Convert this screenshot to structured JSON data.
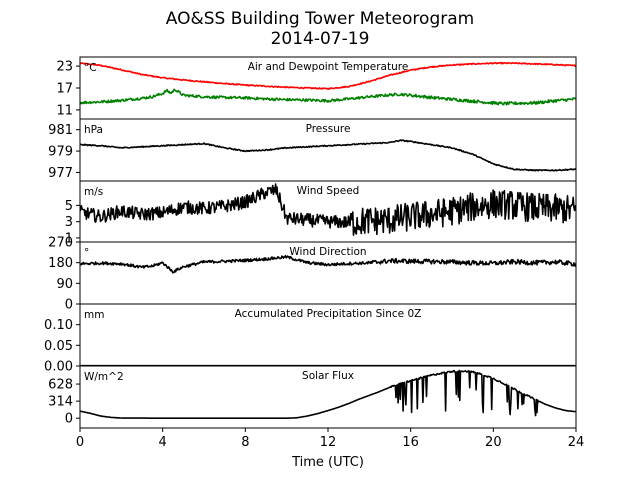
{
  "chart_data": {
    "type": "line",
    "title": "AO&SS Building Tower Meteorogram",
    "subtitle": "2014-07-19",
    "xlabel": "Time (UTC)",
    "xlim": [
      0,
      24
    ],
    "xticks": [
      0,
      4,
      8,
      12,
      16,
      20,
      24
    ],
    "panels": [
      {
        "id": "temp",
        "title": "Air and Dewpoint Temperature",
        "unit": "°C",
        "ylim": [
          8.5,
          25.5
        ],
        "yticks": [
          11,
          17,
          23
        ],
        "series": [
          {
            "color": "#ff0000",
            "x": [
              0,
              1,
              2,
              3,
              4,
              5,
              6,
              7,
              8,
              9,
              10,
              11,
              12,
              13,
              14,
              15,
              16,
              17,
              18,
              19,
              20,
              21,
              22,
              23,
              24
            ],
            "values": [
              23.8,
              23.2,
              22.0,
              20.7,
              19.8,
              19.2,
              18.7,
              18.2,
              17.8,
              17.5,
              17.2,
              17.0,
              16.8,
              17.4,
              18.8,
              20.5,
              21.9,
              22.8,
              23.3,
              23.6,
              23.8,
              23.8,
              23.6,
              23.4,
              23.1
            ]
          },
          {
            "color": "#008000",
            "x": [
              0,
              1,
              2,
              3,
              3.5,
              4,
              4.2,
              4.4,
              4.6,
              5,
              6,
              7,
              8,
              9,
              10,
              11,
              12,
              13,
              14,
              15,
              15.5,
              16,
              17,
              18,
              19,
              20,
              20.5,
              21,
              22,
              23,
              24
            ],
            "values": [
              13.0,
              13.2,
              13.6,
              14.2,
              14.6,
              15.5,
              16.3,
              15.6,
              16.6,
              15.0,
              14.6,
              14.4,
              14.3,
              14.0,
              13.8,
              13.7,
              13.5,
              14.0,
              14.6,
              15.1,
              15.3,
              15.0,
              14.4,
              13.9,
              13.4,
              12.9,
              12.7,
              12.8,
              12.9,
              13.5,
              14.0
            ]
          }
        ]
      },
      {
        "id": "pressure",
        "title": "Pressure",
        "unit": "hPa",
        "ylim": [
          976.2,
          982.0
        ],
        "yticks": [
          977,
          979,
          981
        ],
        "series": [
          {
            "color": "#000000",
            "x": [
              0,
              1,
              2,
              3,
              4,
              5,
              6,
              7,
              8,
              9,
              10,
              11,
              12,
              13,
              14,
              15,
              15.5,
              16,
              17,
              18,
              19,
              20,
              21,
              22,
              23,
              24
            ],
            "values": [
              979.6,
              979.5,
              979.3,
              979.4,
              979.5,
              979.6,
              979.7,
              979.3,
              979.0,
              979.1,
              979.3,
              979.4,
              979.5,
              979.6,
              979.7,
              979.8,
              980.0,
              979.9,
              979.6,
              979.3,
              978.7,
              977.8,
              977.3,
              977.2,
              977.2,
              977.3
            ]
          }
        ]
      },
      {
        "id": "wind_speed",
        "title": "Wind Speed",
        "unit": "m/s",
        "ylim": [
          0.5,
          8.0
        ],
        "yticks": [
          1,
          3,
          5
        ],
        "series": [
          {
            "color": "#000000",
            "x": [
              0,
              1,
              2,
              3,
              4,
              5,
              6,
              7,
              8,
              9,
              9.5,
              10,
              11,
              12,
              13,
              14,
              15,
              16,
              17,
              18,
              19,
              20,
              21,
              22,
              23,
              24
            ],
            "values": [
              4.2,
              3.6,
              4.3,
              3.9,
              4.1,
              4.8,
              4.6,
              4.9,
              5.4,
              6.6,
              6.9,
              3.4,
              3.2,
              3.0,
              2.9,
              3.1,
              3.2,
              3.6,
              3.9,
              4.3,
              4.8,
              5.2,
              5.0,
              4.7,
              4.6,
              4.4
            ]
          }
        ]
      },
      {
        "id": "wind_dir",
        "title": "Wind Direction",
        "unit": "°",
        "ylim": [
          0,
          270
        ],
        "yticks": [
          0,
          90,
          180,
          270
        ],
        "series": [
          {
            "color": "#000000",
            "x": [
              0,
              1,
              2,
              3,
              3.5,
              4,
              4.5,
              5,
              6,
              7,
              8,
              9,
              10,
              11,
              12,
              13,
              14,
              15,
              16,
              17,
              18,
              19,
              20,
              21,
              22,
              23,
              24
            ],
            "values": [
              175,
              178,
              175,
              160,
              165,
              180,
              140,
              162,
              183,
              186,
              190,
              196,
              205,
              180,
              171,
              176,
              179,
              188,
              186,
              185,
              183,
              179,
              177,
              184,
              179,
              183,
              174
            ]
          }
        ]
      },
      {
        "id": "precip",
        "title": "Accumulated Precipitation Since 0Z",
        "unit": "mm",
        "ylim": [
          0,
          0.15
        ],
        "yticks": [
          0.0,
          0.05,
          0.1
        ],
        "ytick_labels": [
          "0.00",
          "0.05",
          "0.10"
        ],
        "series": [
          {
            "color": "#000000",
            "x": [
              0,
              24
            ],
            "values": [
              0,
              0
            ]
          }
        ]
      },
      {
        "id": "solar",
        "title": "Solar Flux",
        "unit": "W/m^2",
        "ylim": [
          -180,
          960
        ],
        "yticks": [
          0,
          314,
          628
        ],
        "series": [
          {
            "color": "#000000",
            "x": [
              0,
              0.5,
              1,
              1.5,
              2,
              4,
              6,
              8,
              9,
              10,
              10.5,
              11,
              11.5,
              12,
              12.5,
              13,
              13.5,
              14,
              14.5,
              15,
              15.5,
              16,
              16.5,
              17,
              17.5,
              18,
              18.5,
              19,
              19.5,
              20,
              20.5,
              21,
              21.5,
              22,
              22.5,
              23,
              23.5,
              24
            ],
            "values": [
              130,
              90,
              40,
              15,
              3,
              0,
              0,
              0,
              0,
              0,
              8,
              40,
              85,
              140,
              200,
              270,
              350,
              420,
              490,
              570,
              630,
              690,
              740,
              790,
              830,
              860,
              870,
              850,
              800,
              730,
              640,
              540,
              440,
              350,
              260,
              190,
              140,
              120
            ]
          }
        ]
      }
    ]
  }
}
